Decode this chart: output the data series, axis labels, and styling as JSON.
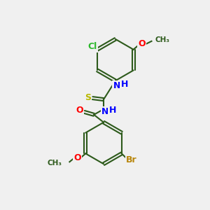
{
  "bg_color": "#f0f0f0",
  "bond_color": "#2d5a1b",
  "title": "",
  "atoms": {
    "Br": {
      "color": "#b8860b",
      "label": "Br"
    },
    "Cl": {
      "color": "#2db82d",
      "label": "Cl"
    },
    "O_red": {
      "color": "#ff0000",
      "label": "O"
    },
    "N_blue": {
      "color": "#0000ff",
      "label": "N"
    },
    "S_yellow": {
      "color": "#cccc00",
      "label": "S"
    },
    "H_blue": {
      "color": "#0000ff",
      "label": "H"
    },
    "methoxy_red": {
      "color": "#ff0000",
      "label": "O"
    }
  },
  "figsize": [
    3.0,
    3.0
  ],
  "dpi": 100
}
